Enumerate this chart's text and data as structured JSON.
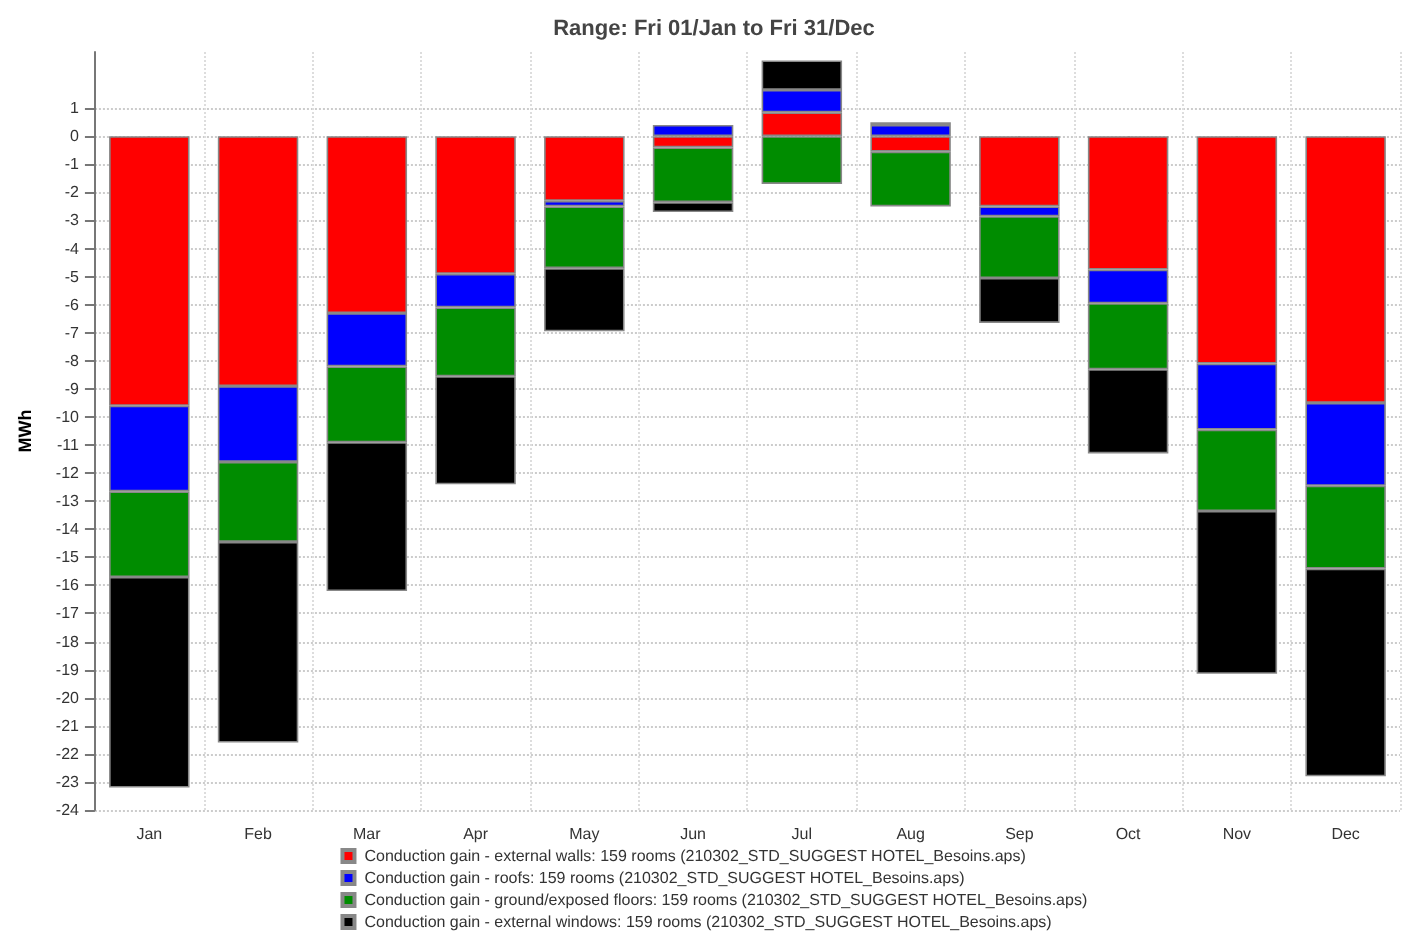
{
  "chart_data": {
    "type": "bar",
    "title": "Range: Fri 01/Jan to Fri 31/Dec",
    "ylabel": "MWh",
    "stacked": true,
    "categories": [
      "Jan",
      "Feb",
      "Mar",
      "Apr",
      "May",
      "Jun",
      "Jul",
      "Aug",
      "Sep",
      "Oct",
      "Nov",
      "Dec"
    ],
    "series": [
      {
        "name": "Conduction gain - external walls: 159 rooms (210302_STD_SUGGEST HOTEL_Besoins.aps)",
        "color": "#ff0000",
        "values": [
          -9.6,
          -8.9,
          -6.3,
          -4.9,
          -2.3,
          -0.4,
          0.85,
          -0.55,
          -2.5,
          -4.75,
          -8.1,
          -9.5
        ]
      },
      {
        "name": "Conduction gain - roofs: 159 rooms (210302_STD_SUGGEST HOTEL_Besoins.aps)",
        "color": "#0000ff",
        "values": [
          -3.05,
          -2.7,
          -1.9,
          -1.2,
          -0.2,
          0.4,
          0.8,
          0.4,
          -0.35,
          -1.2,
          -2.35,
          -2.95
        ]
      },
      {
        "name": "Conduction gain - ground/exposed floors: 159 rooms (210302_STD_SUGGEST HOTEL_Besoins.aps)",
        "color": "#008c00",
        "values": [
          -3.05,
          -2.85,
          -2.7,
          -2.45,
          -2.2,
          -1.95,
          -1.7,
          -1.95,
          -2.2,
          -2.35,
          -2.9,
          -2.95
        ]
      },
      {
        "name": "Conduction gain - external windows: 159 rooms (210302_STD_SUGGEST HOTEL_Besoins.aps)",
        "color": "#000000",
        "values": [
          -7.5,
          -7.15,
          -5.3,
          -3.85,
          -2.25,
          -0.35,
          1.05,
          0.1,
          -1.6,
          -3,
          -5.8,
          -7.4
        ]
      }
    ],
    "ylim": [
      -24,
      3
    ],
    "yticks": [
      -24,
      -23,
      -22,
      -21,
      -20,
      -19,
      -18,
      -17,
      -16,
      -15,
      -14,
      -13,
      -12,
      -11,
      -10,
      -9,
      -8,
      -7,
      -6,
      -5,
      -4,
      -3,
      -2,
      -1,
      0,
      1
    ],
    "grid": true,
    "legend": "bottom"
  }
}
